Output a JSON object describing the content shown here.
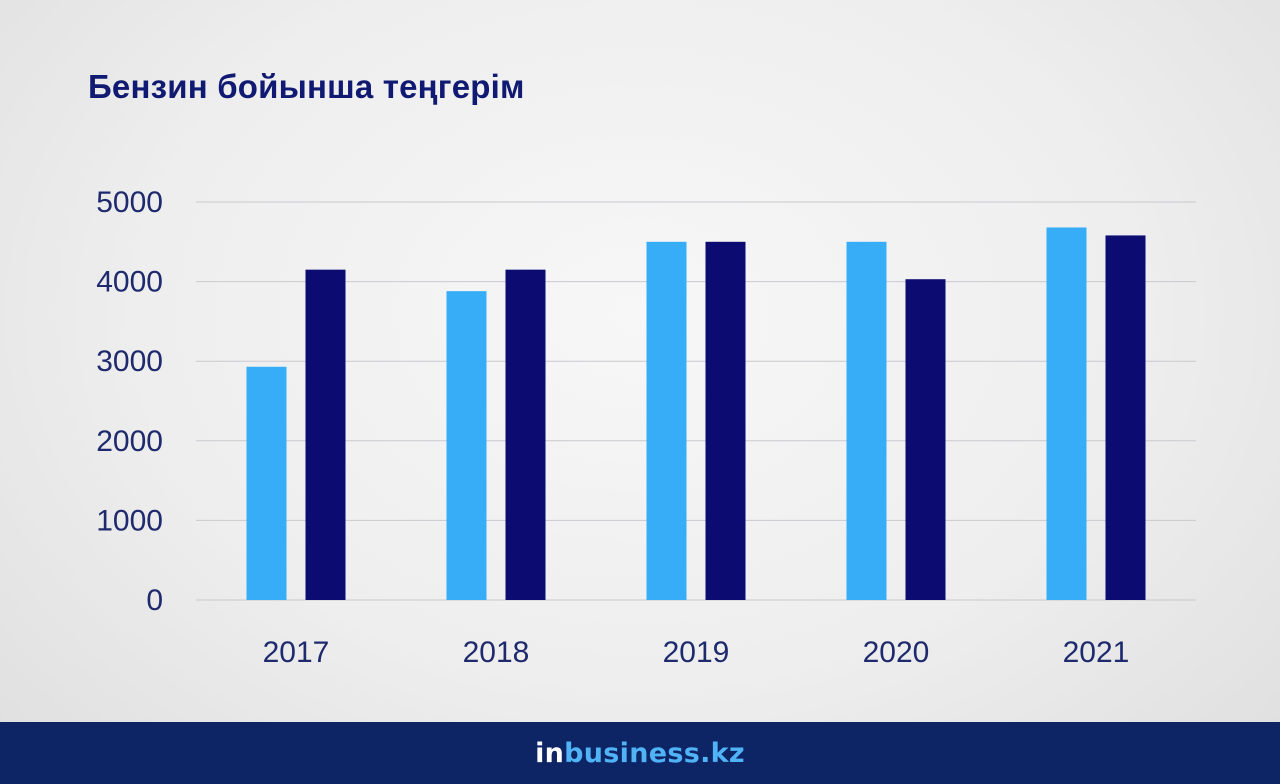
{
  "title": "Бензин бойынша теңгерім",
  "logo": {
    "prefix": "in",
    "rest": "business.kz"
  },
  "colors": {
    "series_a": "#37adf8",
    "series_b": "#0c0b72",
    "title": "#101a72",
    "footer": "#0d2565",
    "axis_text": "#1f2a6e"
  },
  "chart_data": {
    "type": "bar",
    "title": "Бензин бойынша теңгерім",
    "categories": [
      "2017",
      "2018",
      "2019",
      "2020",
      "2021"
    ],
    "series": [
      {
        "values": [
          2930,
          3880,
          4500,
          4500,
          4680
        ]
      },
      {
        "values": [
          4150,
          4150,
          4500,
          4030,
          4580
        ]
      }
    ],
    "ylim": [
      0,
      5000
    ],
    "yticks": [
      "0",
      "1000",
      "2000",
      "3000",
      "4000",
      "5000"
    ],
    "xlabel": "",
    "ylabel": "",
    "grid": true,
    "legend": "none"
  }
}
